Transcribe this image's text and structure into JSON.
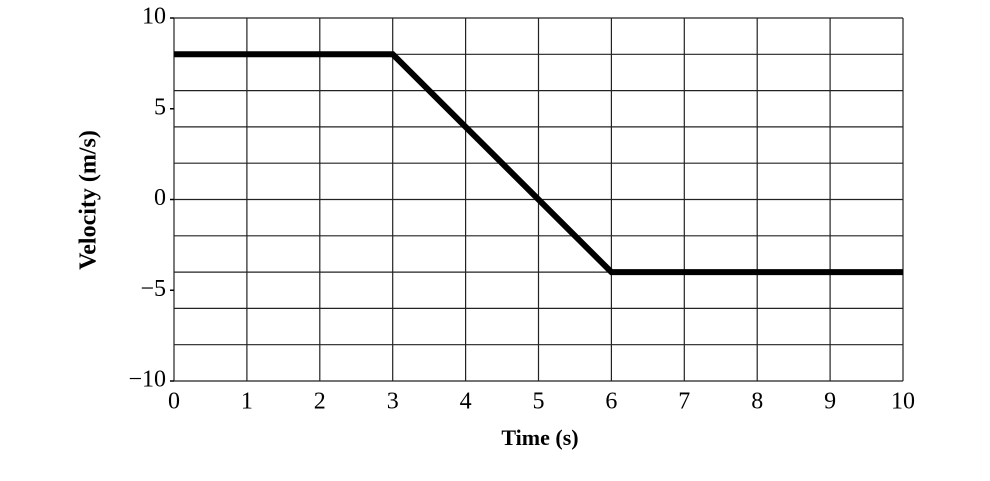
{
  "chart_data": {
    "type": "line",
    "x_label": "Time (s)",
    "y_label": "Velocity (m/s)",
    "x": [
      0,
      3,
      6,
      10
    ],
    "series": [
      {
        "name": "velocity",
        "color": "#000000",
        "values": [
          8,
          8,
          -4,
          -4
        ]
      }
    ],
    "xlim": [
      0,
      10
    ],
    "xticks": [
      0,
      1,
      2,
      3,
      4,
      5,
      6,
      7,
      8,
      9,
      10
    ],
    "ylim": [
      -10,
      10
    ],
    "yticks": [
      {
        "value": -10,
        "label": "−10"
      },
      {
        "value": -5,
        "label": "−5"
      },
      0,
      5,
      10
    ],
    "ygrid": [
      -10,
      -8,
      -6,
      -4,
      -2,
      0,
      2,
      4,
      6,
      8,
      10
    ],
    "grid": true
  }
}
